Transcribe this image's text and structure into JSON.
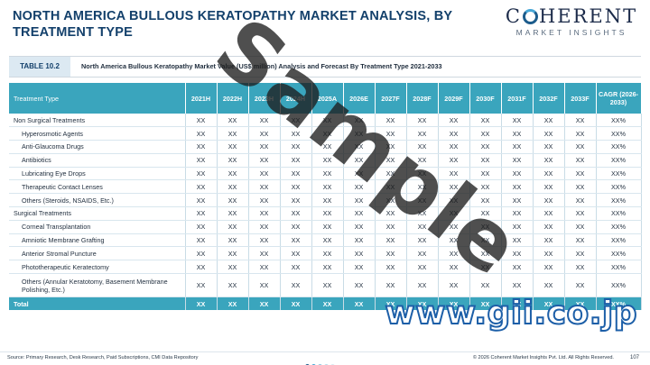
{
  "header": {
    "title": "NORTH AMERICA BULLOUS KERATOPATHY MARKET ANALYSIS, BY TREATMENT TYPE",
    "logo_main_pre": "C",
    "logo_main_post": "HERENT",
    "logo_sub": "MARKET INSIGHTS"
  },
  "table_label": {
    "tag": "TABLE 10.2",
    "caption": "North America Bullous Keratopathy Market Value (US$ million) Analysis and Forecast By Treatment Type 2021-2033"
  },
  "table": {
    "columns": [
      "Treatment Type",
      "2021H",
      "2022H",
      "2023H",
      "2024H",
      "2025A",
      "2026E",
      "2027F",
      "2028F",
      "2029F",
      "2030F",
      "2031F",
      "2032F",
      "2033F",
      "CAGR (2026-2033)"
    ],
    "rows": [
      {
        "label": "Non Surgical Treatments",
        "indent": false,
        "values": [
          "XX",
          "XX",
          "XX",
          "XX",
          "XX",
          "XX",
          "XX",
          "XX",
          "XX",
          "XX",
          "XX",
          "XX",
          "XX",
          "XX%"
        ]
      },
      {
        "label": "Hyperosmotic Agents",
        "indent": true,
        "values": [
          "XX",
          "XX",
          "XX",
          "XX",
          "XX",
          "XX",
          "XX",
          "XX",
          "XX",
          "XX",
          "XX",
          "XX",
          "XX",
          "XX%"
        ]
      },
      {
        "label": "Anti-Glaucoma Drugs",
        "indent": true,
        "values": [
          "XX",
          "XX",
          "XX",
          "XX",
          "XX",
          "XX",
          "XX",
          "XX",
          "XX",
          "XX",
          "XX",
          "XX",
          "XX",
          "XX%"
        ]
      },
      {
        "label": "Antibiotics",
        "indent": true,
        "values": [
          "XX",
          "XX",
          "XX",
          "XX",
          "XX",
          "XX",
          "XX",
          "XX",
          "XX",
          "XX",
          "XX",
          "XX",
          "XX",
          "XX%"
        ]
      },
      {
        "label": "Lubricating Eye Drops",
        "indent": true,
        "values": [
          "XX",
          "XX",
          "XX",
          "XX",
          "XX",
          "XX",
          "XX",
          "XX",
          "XX",
          "XX",
          "XX",
          "XX",
          "XX",
          "XX%"
        ]
      },
      {
        "label": "Therapeutic Contact Lenses",
        "indent": true,
        "values": [
          "XX",
          "XX",
          "XX",
          "XX",
          "XX",
          "XX",
          "XX",
          "XX",
          "XX",
          "XX",
          "XX",
          "XX",
          "XX",
          "XX%"
        ]
      },
      {
        "label": "Others (Steroids, NSAIDS, Etc.)",
        "indent": true,
        "values": [
          "XX",
          "XX",
          "XX",
          "XX",
          "XX",
          "XX",
          "XX",
          "XX",
          "XX",
          "XX",
          "XX",
          "XX",
          "XX",
          "XX%"
        ]
      },
      {
        "label": "Surgical Treatments",
        "indent": false,
        "values": [
          "XX",
          "XX",
          "XX",
          "XX",
          "XX",
          "XX",
          "XX",
          "XX",
          "XX",
          "XX",
          "XX",
          "XX",
          "XX",
          "XX%"
        ]
      },
      {
        "label": "Corneal Transplantation",
        "indent": true,
        "values": [
          "XX",
          "XX",
          "XX",
          "XX",
          "XX",
          "XX",
          "XX",
          "XX",
          "XX",
          "XX",
          "XX",
          "XX",
          "XX",
          "XX%"
        ]
      },
      {
        "label": "Amniotic Membrane Grafting",
        "indent": true,
        "values": [
          "XX",
          "XX",
          "XX",
          "XX",
          "XX",
          "XX",
          "XX",
          "XX",
          "XX",
          "XX",
          "XX",
          "XX",
          "XX",
          "XX%"
        ]
      },
      {
        "label": "Anterior Stromal Puncture",
        "indent": true,
        "values": [
          "XX",
          "XX",
          "XX",
          "XX",
          "XX",
          "XX",
          "XX",
          "XX",
          "XX",
          "XX",
          "XX",
          "XX",
          "XX",
          "XX%"
        ]
      },
      {
        "label": "Phototherapeutic Keratectomy",
        "indent": true,
        "values": [
          "XX",
          "XX",
          "XX",
          "XX",
          "XX",
          "XX",
          "XX",
          "XX",
          "XX",
          "XX",
          "XX",
          "XX",
          "XX",
          "XX%"
        ]
      },
      {
        "label": "Others (Annular Keratotomy, Basement Membrane Polishing, Etc.)",
        "indent": true,
        "tall": true,
        "values": [
          "XX",
          "XX",
          "XX",
          "XX",
          "XX",
          "XX",
          "XX",
          "XX",
          "XX",
          "XX",
          "XX",
          "XX",
          "XX",
          "XX%"
        ]
      },
      {
        "label": "Total",
        "indent": false,
        "total": true,
        "values": [
          "XX",
          "XX",
          "XX",
          "XX",
          "XX",
          "XX",
          "XX",
          "XX",
          "XX",
          "XX",
          "XX",
          "XX",
          "XX",
          "XX%"
        ]
      }
    ]
  },
  "watermark": "Sample",
  "site_mark": "www.gii.co.jp",
  "footer": {
    "source": "Source: Primary Research, Desk Research, Paid Subscriptions, CMI Data Repository",
    "copyright": "© 2026 Coherent Market Insights Pvt. Ltd. All Rights Reserved.",
    "page": "107",
    "dot_colors": [
      "#1c5c8c",
      "#46a6d6",
      "#8fc9e2",
      "#b9dcea",
      "#d7e9f1"
    ]
  },
  "colors": {
    "header_fill": "#3aa5bd",
    "title": "#13406b",
    "tag_fill": "#dce9f2"
  }
}
